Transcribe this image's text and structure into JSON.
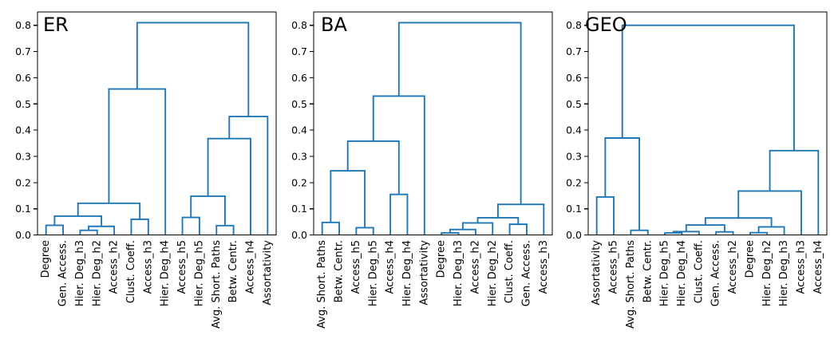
{
  "figure": {
    "background": "#ffffff",
    "line_color": "#1f77b4",
    "axis_color": "#000000",
    "text_color": "#000000"
  },
  "chart_data": [
    {
      "type": "dendrogram",
      "title": "ER",
      "ylim": [
        0.0,
        0.85
      ],
      "yticks": [
        0.0,
        0.1,
        0.2,
        0.3,
        0.4,
        0.5,
        0.6,
        0.7,
        0.8
      ],
      "grid": false,
      "leaves": [
        "Degree",
        "Gen. Access.",
        "Hier. Deg_h3",
        "Hier. Deg_h2",
        "Access_h2",
        "Clust. Coeff.",
        "Access_h3",
        "Hier. Deg_h4",
        "Access_h5",
        "Hier. Deg_h5",
        "Avg. Short. Paths",
        "Betw. Centr.",
        "Access_h4",
        "Assortativity"
      ],
      "merges": [
        {
          "a": "L2",
          "b": "L3",
          "h": 0.018
        },
        {
          "a": "M0",
          "b": "L4",
          "h": 0.033
        },
        {
          "a": "L0",
          "b": "L1",
          "h": 0.037
        },
        {
          "a": "M2",
          "b": "M1",
          "h": 0.072
        },
        {
          "a": "L5",
          "b": "L6",
          "h": 0.06
        },
        {
          "a": "M3",
          "b": "M4",
          "h": 0.121
        },
        {
          "a": "M5",
          "b": "L7",
          "h": 0.557
        },
        {
          "a": "L8",
          "b": "L9",
          "h": 0.067
        },
        {
          "a": "L10",
          "b": "L11",
          "h": 0.036
        },
        {
          "a": "M7",
          "b": "M8",
          "h": 0.148
        },
        {
          "a": "M9",
          "b": "L12",
          "h": 0.368
        },
        {
          "a": "M10",
          "b": "L13",
          "h": 0.452
        },
        {
          "a": "M6",
          "b": "M11",
          "h": 0.81
        }
      ]
    },
    {
      "type": "dendrogram",
      "title": "BA",
      "ylim": [
        0.0,
        0.85
      ],
      "yticks": [
        0.0,
        0.1,
        0.2,
        0.3,
        0.4,
        0.5,
        0.6,
        0.7,
        0.8
      ],
      "grid": false,
      "leaves": [
        "Avg. Short. Paths",
        "Betw. Centr.",
        "Access_h5",
        "Hier. Deg_h5",
        "Access_h4",
        "Hier. Deg_h4",
        "Assortativity",
        "Degree",
        "Hier. Deg_h3",
        "Access_h2",
        "Hier. Deg_h2",
        "Clust. Coeff.",
        "Gen. Access.",
        "Access_h3"
      ],
      "merges": [
        {
          "a": "L0",
          "b": "L1",
          "h": 0.048
        },
        {
          "a": "L2",
          "b": "L3",
          "h": 0.028
        },
        {
          "a": "M0",
          "b": "M1",
          "h": 0.245
        },
        {
          "a": "L4",
          "b": "L5",
          "h": 0.155
        },
        {
          "a": "M2",
          "b": "M3",
          "h": 0.358
        },
        {
          "a": "M4",
          "b": "L6",
          "h": 0.53
        },
        {
          "a": "L7",
          "b": "L8",
          "h": 0.008
        },
        {
          "a": "M6",
          "b": "L9",
          "h": 0.021
        },
        {
          "a": "M7",
          "b": "L10",
          "h": 0.046
        },
        {
          "a": "L11",
          "b": "L12",
          "h": 0.041
        },
        {
          "a": "M8",
          "b": "M9",
          "h": 0.066
        },
        {
          "a": "M10",
          "b": "L13",
          "h": 0.117
        },
        {
          "a": "M5",
          "b": "M11",
          "h": 0.81
        }
      ]
    },
    {
      "type": "dendrogram",
      "title": "GEO",
      "ylim": [
        0.0,
        0.85
      ],
      "yticks": [
        0.0,
        0.1,
        0.2,
        0.3,
        0.4,
        0.5,
        0.6,
        0.7,
        0.8
      ],
      "grid": false,
      "leaves": [
        "Assortativity",
        "Access_h5",
        "Avg. Short. Paths",
        "Betw. Centr.",
        "Hier. Deg_h5",
        "Hier. Deg_h4",
        "Clust. Coeff.",
        "Gen. Access.",
        "Access_h2",
        "Degree",
        "Hier. Deg_h2",
        "Hier. Deg_h3",
        "Access_h3",
        "Access_h4"
      ],
      "merges": [
        {
          "a": "L0",
          "b": "L1",
          "h": 0.145
        },
        {
          "a": "L2",
          "b": "L3",
          "h": 0.018
        },
        {
          "a": "M0",
          "b": "M1",
          "h": 0.37
        },
        {
          "a": "L4",
          "b": "L5",
          "h": 0.008
        },
        {
          "a": "M3",
          "b": "L6",
          "h": 0.013
        },
        {
          "a": "L7",
          "b": "L8",
          "h": 0.012
        },
        {
          "a": "M4",
          "b": "M5",
          "h": 0.038
        },
        {
          "a": "L9",
          "b": "L10",
          "h": 0.009
        },
        {
          "a": "M7",
          "b": "L11",
          "h": 0.031
        },
        {
          "a": "M6",
          "b": "M8",
          "h": 0.065
        },
        {
          "a": "M9",
          "b": "L12",
          "h": 0.168
        },
        {
          "a": "M10",
          "b": "L13",
          "h": 0.322
        },
        {
          "a": "M2",
          "b": "M11",
          "h": 0.8
        }
      ]
    }
  ]
}
